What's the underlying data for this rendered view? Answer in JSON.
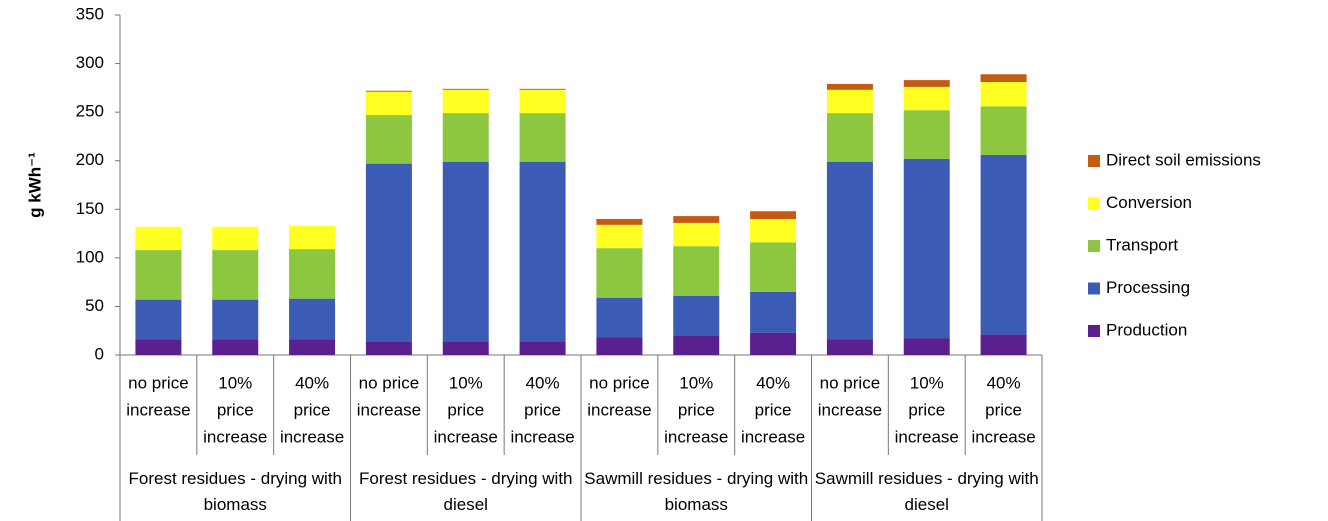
{
  "chart_data": {
    "type": "stacked_bar",
    "y_label": "g kWh⁻¹",
    "ylim": [
      0,
      350
    ],
    "yticks": [
      0,
      50,
      100,
      150,
      200,
      250,
      300,
      350
    ],
    "categories": [
      [
        "no price",
        "increase"
      ],
      [
        "10%",
        "price",
        "increase"
      ],
      [
        "40%",
        "price",
        "increase"
      ],
      [
        "no price",
        "increase"
      ],
      [
        "10%",
        "price",
        "increase"
      ],
      [
        "40%",
        "price",
        "increase"
      ],
      [
        "no price",
        "increase"
      ],
      [
        "10%",
        "price",
        "increase"
      ],
      [
        "40%",
        "price",
        "increase"
      ],
      [
        "no price",
        "increase"
      ],
      [
        "10%",
        "price",
        "increase"
      ],
      [
        "40%",
        "price",
        "increase"
      ]
    ],
    "groups": [
      "Forest residues - drying with biomass",
      "Forest residues - drying with diesel",
      "Sawmill residues - drying with biomass",
      "Sawmill residues - drying with diesel"
    ],
    "series": [
      {
        "name": "Production",
        "color": "#5b2090",
        "values": [
          16,
          16,
          16,
          14,
          14,
          14,
          18,
          20,
          23,
          16,
          17,
          21
        ]
      },
      {
        "name": "Processing",
        "color": "#3c5bb5",
        "values": [
          41,
          41,
          42,
          183,
          185,
          185,
          41,
          41,
          42,
          183,
          185,
          185
        ]
      },
      {
        "name": "Transport",
        "color": "#8dc63f",
        "values": [
          51,
          51,
          51,
          50,
          50,
          50,
          51,
          51,
          51,
          50,
          50,
          50
        ]
      },
      {
        "name": "Conversion",
        "color": "#ffff21",
        "values": [
          24,
          24,
          24,
          24,
          24,
          24,
          24,
          24,
          24,
          24,
          24,
          25
        ]
      },
      {
        "name": "Direct soil emissions",
        "color": "#c55a11",
        "values": [
          0,
          0,
          0,
          1,
          1,
          1,
          6,
          7,
          8,
          6,
          7,
          8
        ]
      }
    ]
  }
}
